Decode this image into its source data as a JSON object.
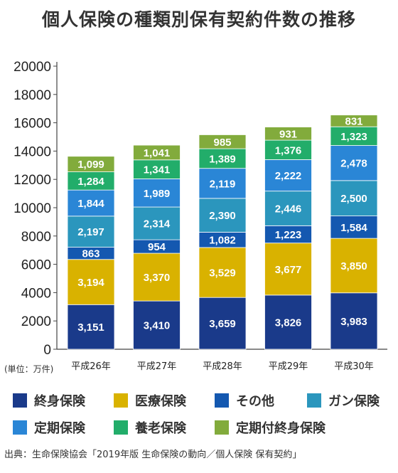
{
  "title": "個人保険の種類別保有契約件数の推移",
  "unit_label": "(単位：万件)",
  "source": "出典：生命保険協会「2019年版 生命保険の動向／個人保険 保有契約」",
  "chart_data": {
    "type": "bar",
    "stacked": true,
    "title": "個人保険の種類別保有契約件数の推移",
    "categories": [
      "平成26年",
      "平成27年",
      "平成28年",
      "平成29年",
      "平成30年"
    ],
    "ylim": [
      0,
      20000
    ],
    "yticks": [
      "0",
      "2000",
      "4000",
      "6000",
      "8000",
      "10000",
      "12000",
      "14000",
      "16000",
      "18000",
      "20000"
    ],
    "series": [
      {
        "name": "終身保険",
        "color": "#1a3a8a",
        "values": [
          3151,
          3410,
          3659,
          3826,
          3983
        ],
        "labels": [
          "3,151",
          "3,410",
          "3,659",
          "3,826",
          "3,983"
        ]
      },
      {
        "name": "医療保険",
        "color": "#d9b200",
        "values": [
          3194,
          3370,
          3529,
          3677,
          3850
        ],
        "labels": [
          "3,194",
          "3,370",
          "3,529",
          "3,677",
          "3,850"
        ]
      },
      {
        "name": "その他",
        "color": "#1458b0",
        "values": [
          863,
          954,
          1082,
          1223,
          1584
        ],
        "labels": [
          "863",
          "954",
          "1,082",
          "1,223",
          "1,584"
        ]
      },
      {
        "name": "ガン保険",
        "color": "#2b96bd",
        "values": [
          2197,
          2314,
          2390,
          2446,
          2500
        ],
        "labels": [
          "2,197",
          "2,314",
          "2,390",
          "2,446",
          "2,500"
        ]
      },
      {
        "name": "定期保険",
        "color": "#2a86d6",
        "values": [
          1844,
          1989,
          2119,
          2222,
          2478
        ],
        "labels": [
          "1,844",
          "1,989",
          "2,119",
          "2,222",
          "2,478"
        ]
      },
      {
        "name": "養老保険",
        "color": "#22ad6a",
        "values": [
          1284,
          1341,
          1389,
          1376,
          1323
        ],
        "labels": [
          "1,284",
          "1,341",
          "1,389",
          "1,376",
          "1,323"
        ]
      },
      {
        "name": "定期付終身保険",
        "color": "#82ab3c",
        "values": [
          1099,
          1041,
          985,
          931,
          831
        ],
        "labels": [
          "1,099",
          "1,041",
          "985",
          "931",
          "831"
        ]
      }
    ],
    "legend_position": "bottom",
    "grid": false
  }
}
